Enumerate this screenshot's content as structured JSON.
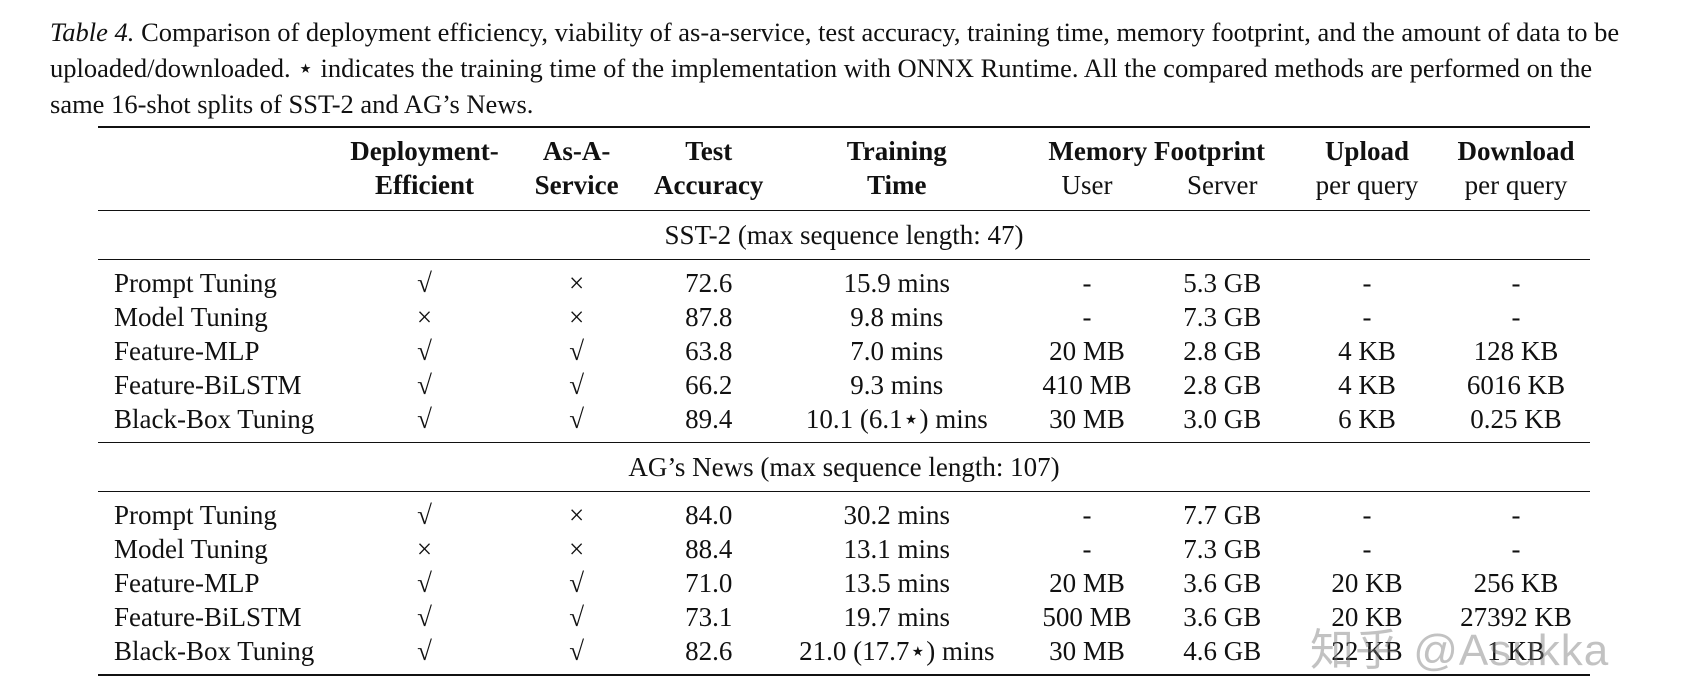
{
  "caption": {
    "label": "Table 4.",
    "text": "Comparison of deployment efficiency, viability of as-a-service, test accuracy, training time, memory footprint, and the amount of data to be uploaded/downloaded. ⋆ indicates the training time of the implementation with ONNX Runtime. All the compared methods are performed on the same 16-shot splits of SST-2 and AG’s News."
  },
  "header": {
    "row1": [
      "",
      "Deployment-",
      "As-A-",
      "Test",
      "Training",
      "Memory Footprint",
      "Upload",
      "Download"
    ],
    "row2": [
      "",
      "Efficient",
      "Service",
      "Accuracy",
      "Time",
      "User",
      "Server",
      "per query",
      "per query"
    ]
  },
  "sections": [
    {
      "title": "SST-2 (max sequence length: 47)",
      "rows": [
        [
          "Prompt Tuning",
          "√",
          "×",
          "72.6",
          "15.9 mins",
          "-",
          "5.3 GB",
          "-",
          "-"
        ],
        [
          "Model Tuning",
          "×",
          "×",
          "87.8",
          "9.8 mins",
          "-",
          "7.3 GB",
          "-",
          "-"
        ],
        [
          "Feature-MLP",
          "√",
          "√",
          "63.8",
          "7.0 mins",
          "20 MB",
          "2.8 GB",
          "4 KB",
          "128 KB"
        ],
        [
          "Feature-BiLSTM",
          "√",
          "√",
          "66.2",
          "9.3 mins",
          "410 MB",
          "2.8 GB",
          "4 KB",
          "6016 KB"
        ],
        [
          "Black-Box Tuning",
          "√",
          "√",
          "89.4",
          "10.1 (6.1⋆) mins",
          "30 MB",
          "3.0 GB",
          "6 KB",
          "0.25 KB"
        ]
      ]
    },
    {
      "title": "AG’s News (max sequence length: 107)",
      "rows": [
        [
          "Prompt Tuning",
          "√",
          "×",
          "84.0",
          "30.2 mins",
          "-",
          "7.7 GB",
          "-",
          "-"
        ],
        [
          "Model Tuning",
          "×",
          "×",
          "88.4",
          "13.1 mins",
          "-",
          "7.3 GB",
          "-",
          "-"
        ],
        [
          "Feature-MLP",
          "√",
          "√",
          "71.0",
          "13.5 mins",
          "20 MB",
          "3.6 GB",
          "20 KB",
          "256 KB"
        ],
        [
          "Feature-BiLSTM",
          "√",
          "√",
          "73.1",
          "19.7 mins",
          "500 MB",
          "3.6 GB",
          "20 KB",
          "27392 KB"
        ],
        [
          "Black-Box Tuning",
          "√",
          "√",
          "82.6",
          "21.0 (17.7⋆) mins",
          "30 MB",
          "4.6 GB",
          "22 KB",
          "1 KB"
        ]
      ]
    }
  ],
  "watermark": "知乎 @Asukka"
}
